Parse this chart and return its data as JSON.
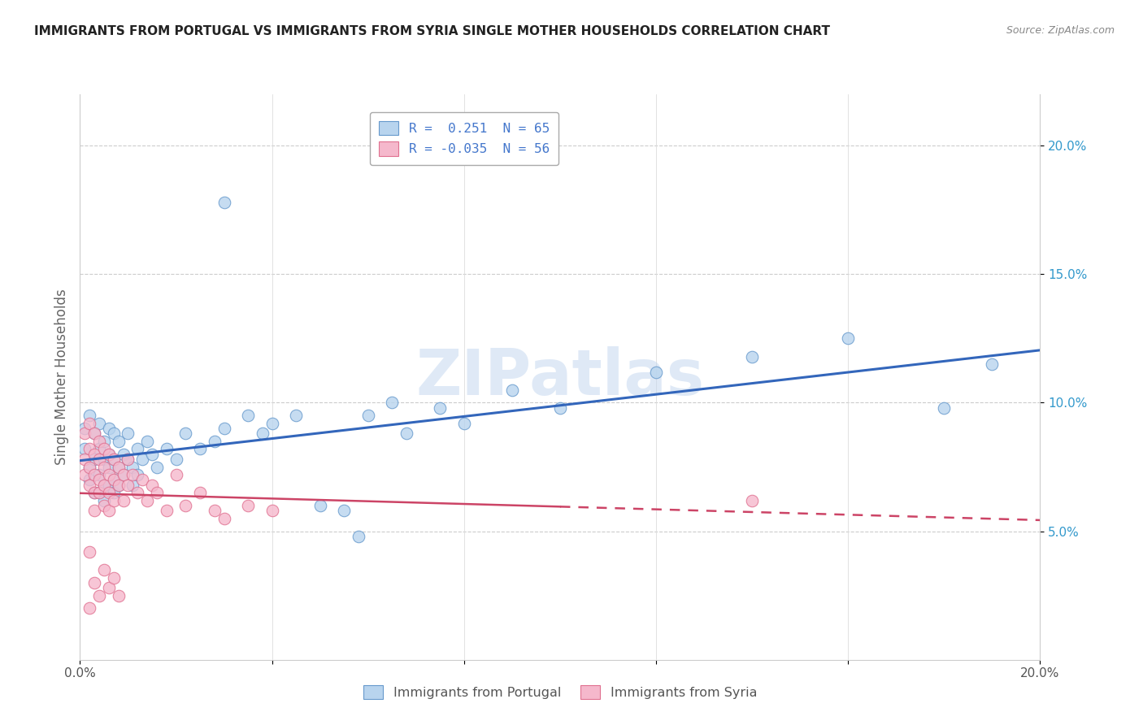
{
  "title": "IMMIGRANTS FROM PORTUGAL VS IMMIGRANTS FROM SYRIA SINGLE MOTHER HOUSEHOLDS CORRELATION CHART",
  "source": "Source: ZipAtlas.com",
  "ylabel": "Single Mother Households",
  "xlim": [
    0.0,
    0.2
  ],
  "ylim": [
    0.0,
    0.22
  ],
  "xticks": [
    0.0,
    0.04,
    0.08,
    0.12,
    0.16,
    0.2
  ],
  "xticklabels": [
    "0.0%",
    "",
    "",
    "",
    "",
    "20.0%"
  ],
  "yticks_right": [
    0.05,
    0.1,
    0.15,
    0.2
  ],
  "ytick_labels_right": [
    "5.0%",
    "10.0%",
    "15.0%",
    "20.0%"
  ],
  "legend_entries": [
    {
      "label": "R =  0.251  N = 65",
      "color": "#adc8e8"
    },
    {
      "label": "R = -0.035  N = 56",
      "color": "#f0a8c0"
    }
  ],
  "portugal_color": "#b8d4ee",
  "portugal_edge": "#6699cc",
  "syria_color": "#f5b8cc",
  "syria_edge": "#e07090",
  "watermark": "ZIPatlas",
  "portugal_points": [
    [
      0.001,
      0.09
    ],
    [
      0.001,
      0.082
    ],
    [
      0.002,
      0.095
    ],
    [
      0.002,
      0.075
    ],
    [
      0.002,
      0.07
    ],
    [
      0.003,
      0.088
    ],
    [
      0.003,
      0.078
    ],
    [
      0.003,
      0.065
    ],
    [
      0.004,
      0.092
    ],
    [
      0.004,
      0.082
    ],
    [
      0.004,
      0.072
    ],
    [
      0.004,
      0.065
    ],
    [
      0.005,
      0.085
    ],
    [
      0.005,
      0.078
    ],
    [
      0.005,
      0.068
    ],
    [
      0.005,
      0.062
    ],
    [
      0.006,
      0.09
    ],
    [
      0.006,
      0.08
    ],
    [
      0.006,
      0.075
    ],
    [
      0.006,
      0.068
    ],
    [
      0.007,
      0.088
    ],
    [
      0.007,
      0.078
    ],
    [
      0.007,
      0.07
    ],
    [
      0.007,
      0.065
    ],
    [
      0.008,
      0.085
    ],
    [
      0.008,
      0.075
    ],
    [
      0.008,
      0.068
    ],
    [
      0.009,
      0.08
    ],
    [
      0.009,
      0.072
    ],
    [
      0.01,
      0.078
    ],
    [
      0.01,
      0.088
    ],
    [
      0.011,
      0.075
    ],
    [
      0.011,
      0.068
    ],
    [
      0.012,
      0.082
    ],
    [
      0.012,
      0.072
    ],
    [
      0.013,
      0.078
    ],
    [
      0.014,
      0.085
    ],
    [
      0.015,
      0.08
    ],
    [
      0.016,
      0.075
    ],
    [
      0.018,
      0.082
    ],
    [
      0.02,
      0.078
    ],
    [
      0.022,
      0.088
    ],
    [
      0.025,
      0.082
    ],
    [
      0.028,
      0.085
    ],
    [
      0.03,
      0.09
    ],
    [
      0.035,
      0.095
    ],
    [
      0.038,
      0.088
    ],
    [
      0.04,
      0.092
    ],
    [
      0.045,
      0.095
    ],
    [
      0.05,
      0.06
    ],
    [
      0.055,
      0.058
    ],
    [
      0.058,
      0.048
    ],
    [
      0.06,
      0.095
    ],
    [
      0.065,
      0.1
    ],
    [
      0.068,
      0.088
    ],
    [
      0.075,
      0.098
    ],
    [
      0.08,
      0.092
    ],
    [
      0.09,
      0.105
    ],
    [
      0.1,
      0.098
    ],
    [
      0.12,
      0.112
    ],
    [
      0.14,
      0.118
    ],
    [
      0.16,
      0.125
    ],
    [
      0.18,
      0.098
    ],
    [
      0.19,
      0.115
    ],
    [
      0.03,
      0.178
    ]
  ],
  "syria_points": [
    [
      0.001,
      0.088
    ],
    [
      0.001,
      0.078
    ],
    [
      0.001,
      0.072
    ],
    [
      0.002,
      0.092
    ],
    [
      0.002,
      0.082
    ],
    [
      0.002,
      0.075
    ],
    [
      0.002,
      0.068
    ],
    [
      0.002,
      0.042
    ],
    [
      0.003,
      0.088
    ],
    [
      0.003,
      0.08
    ],
    [
      0.003,
      0.072
    ],
    [
      0.003,
      0.065
    ],
    [
      0.003,
      0.058
    ],
    [
      0.004,
      0.085
    ],
    [
      0.004,
      0.078
    ],
    [
      0.004,
      0.07
    ],
    [
      0.004,
      0.065
    ],
    [
      0.005,
      0.082
    ],
    [
      0.005,
      0.075
    ],
    [
      0.005,
      0.068
    ],
    [
      0.005,
      0.06
    ],
    [
      0.006,
      0.08
    ],
    [
      0.006,
      0.072
    ],
    [
      0.006,
      0.065
    ],
    [
      0.006,
      0.058
    ],
    [
      0.007,
      0.078
    ],
    [
      0.007,
      0.07
    ],
    [
      0.007,
      0.062
    ],
    [
      0.008,
      0.075
    ],
    [
      0.008,
      0.068
    ],
    [
      0.009,
      0.072
    ],
    [
      0.009,
      0.062
    ],
    [
      0.01,
      0.078
    ],
    [
      0.01,
      0.068
    ],
    [
      0.011,
      0.072
    ],
    [
      0.012,
      0.065
    ],
    [
      0.013,
      0.07
    ],
    [
      0.014,
      0.062
    ],
    [
      0.015,
      0.068
    ],
    [
      0.016,
      0.065
    ],
    [
      0.018,
      0.058
    ],
    [
      0.02,
      0.072
    ],
    [
      0.022,
      0.06
    ],
    [
      0.025,
      0.065
    ],
    [
      0.028,
      0.058
    ],
    [
      0.03,
      0.055
    ],
    [
      0.035,
      0.06
    ],
    [
      0.04,
      0.058
    ],
    [
      0.003,
      0.03
    ],
    [
      0.004,
      0.025
    ],
    [
      0.005,
      0.035
    ],
    [
      0.006,
      0.028
    ],
    [
      0.007,
      0.032
    ],
    [
      0.008,
      0.025
    ],
    [
      0.14,
      0.062
    ],
    [
      0.002,
      0.02
    ]
  ]
}
